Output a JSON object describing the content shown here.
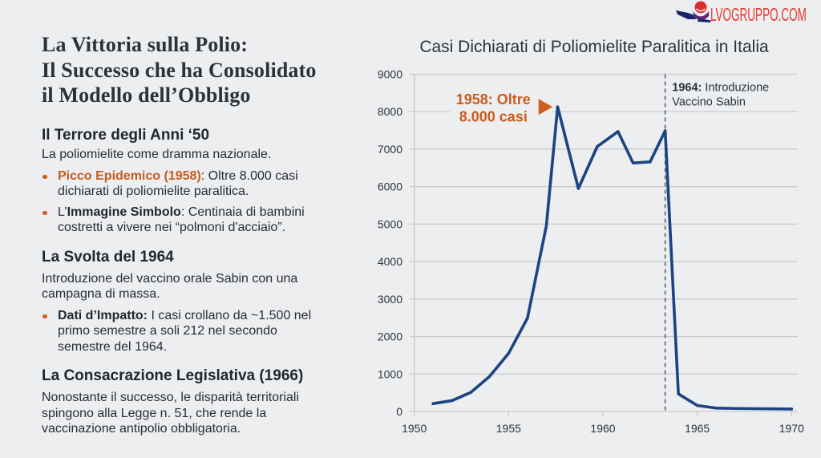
{
  "brand": {
    "logo_text": "LVOGRUPPO.COM",
    "logo_icon": "ball-on-hand-logo-icon",
    "color": "#e8392c"
  },
  "colors": {
    "background": "#edeeef",
    "text": "#262d36",
    "accent": "#c95a1d",
    "line": "#1c4482",
    "grid": "#c9cbcd"
  },
  "left_panel": {
    "title_lines": [
      "La Vittoria sulla Polio:",
      "Il Successo che ha Consolidato",
      "il Modello dell’Obbligo"
    ],
    "sections": [
      {
        "heading": "Il Terrore degli Anni ‘50",
        "intro_lines": [
          "La poliomielite come dramma nazionale."
        ],
        "bullets": [
          {
            "lead": "",
            "strong": "Picco Epidemico (1958)",
            "strong_style": "accent",
            "after": ": Oltre 8.000 casi",
            "cont_lines": [
              "dichiarati di poliomielite paralitica."
            ]
          },
          {
            "lead": "L’",
            "strong": "Immagine Simbolo",
            "strong_style": "bold",
            "after": ": Centinaia di bambini",
            "cont_lines": [
              "costretti a vivere nei “polmoni d'acciaio”."
            ]
          }
        ]
      },
      {
        "heading": "La Svolta del 1964",
        "intro_lines": [
          "Introduzione del vaccino orale Sabin con una",
          "campagna di massa."
        ],
        "bullets": [
          {
            "lead": "",
            "strong": "Dati d’Impatto:",
            "strong_style": "bold",
            "after": " I casi crollano da ~1.500 nel",
            "cont_lines": [
              "primo semestre a soli 212 nel secondo",
              "semestre del 1964."
            ]
          }
        ]
      },
      {
        "heading": "La Consacrazione Legislativa (1966)",
        "intro_lines": [
          "Nonostante il successo, le disparità territoriali",
          "spingono alla Legge n. 51, che rende la",
          "vaccinazione antipolio obbligatoria."
        ],
        "bullets": []
      }
    ]
  },
  "chart_data": {
    "type": "line",
    "title": "Casi Dichiarati di Poliomielite Paralitica in Italia",
    "xlabel": "",
    "ylabel": "",
    "xlim": [
      1950,
      1970
    ],
    "ylim": [
      0,
      9000
    ],
    "x_ticks": [
      1950,
      1955,
      1960,
      1965,
      1970
    ],
    "y_ticks": [
      0,
      1000,
      2000,
      3000,
      4000,
      5000,
      6000,
      7000,
      8000,
      9000
    ],
    "grid": "horizontal",
    "legend": "none",
    "series": [
      {
        "color": "#1c4482",
        "x": [
          1951,
          1952,
          1953,
          1954,
          1955,
          1956,
          1957,
          1957.6,
          1958.7,
          1959.7,
          1960.8,
          1961.6,
          1962.5,
          1963.3,
          1964,
          1965,
          1966,
          1967,
          1968,
          1969,
          1970
        ],
        "y": [
          210,
          290,
          510,
          940,
          1550,
          2490,
          4950,
          8130,
          5950,
          7070,
          7470,
          6630,
          6660,
          7490,
          470,
          160,
          90,
          80,
          75,
          70,
          65
        ]
      }
    ],
    "annotations": [
      {
        "type": "callout",
        "x": 1957.6,
        "y": 8130,
        "text_lines": [
          "1958: Oltre",
          "8.000 casi"
        ],
        "color": "#cc5c1c",
        "marker": "right-pointing-triangle"
      },
      {
        "type": "vertical-line",
        "x": 1963.3,
        "style": "dashed",
        "color": "#4b586b",
        "label_strong": "1964:",
        "label_rest": " Introduzione",
        "label_line2": "Vaccino Sabin"
      }
    ]
  }
}
